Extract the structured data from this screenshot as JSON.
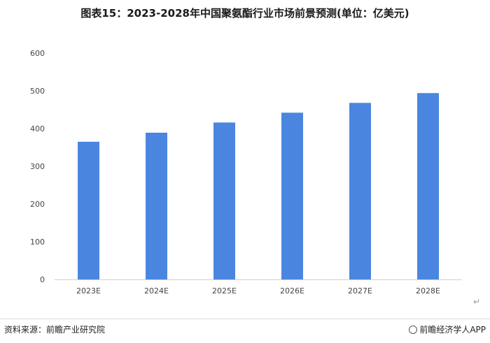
{
  "title": "图表15：2023-2028年中国聚氨酯行业市场前景预测(单位：亿美元)",
  "source": "资料来源：前瞻产业研究院",
  "brand": "前瞻经济学人APP",
  "chart_data": {
    "type": "bar",
    "title": "图表15：2023-2028年中国聚氨酯行业市场前景预测(单位：亿美元)",
    "categories": [
      "2023E",
      "2024E",
      "2025E",
      "2026E",
      "2027E",
      "2028E"
    ],
    "values": [
      365,
      389,
      416,
      442,
      468,
      494
    ],
    "ylim": [
      0,
      600
    ],
    "yticks": [
      0,
      100,
      200,
      300,
      400,
      500,
      600
    ],
    "grid": false,
    "legend": "none",
    "bar_color": "#4a86e0"
  }
}
